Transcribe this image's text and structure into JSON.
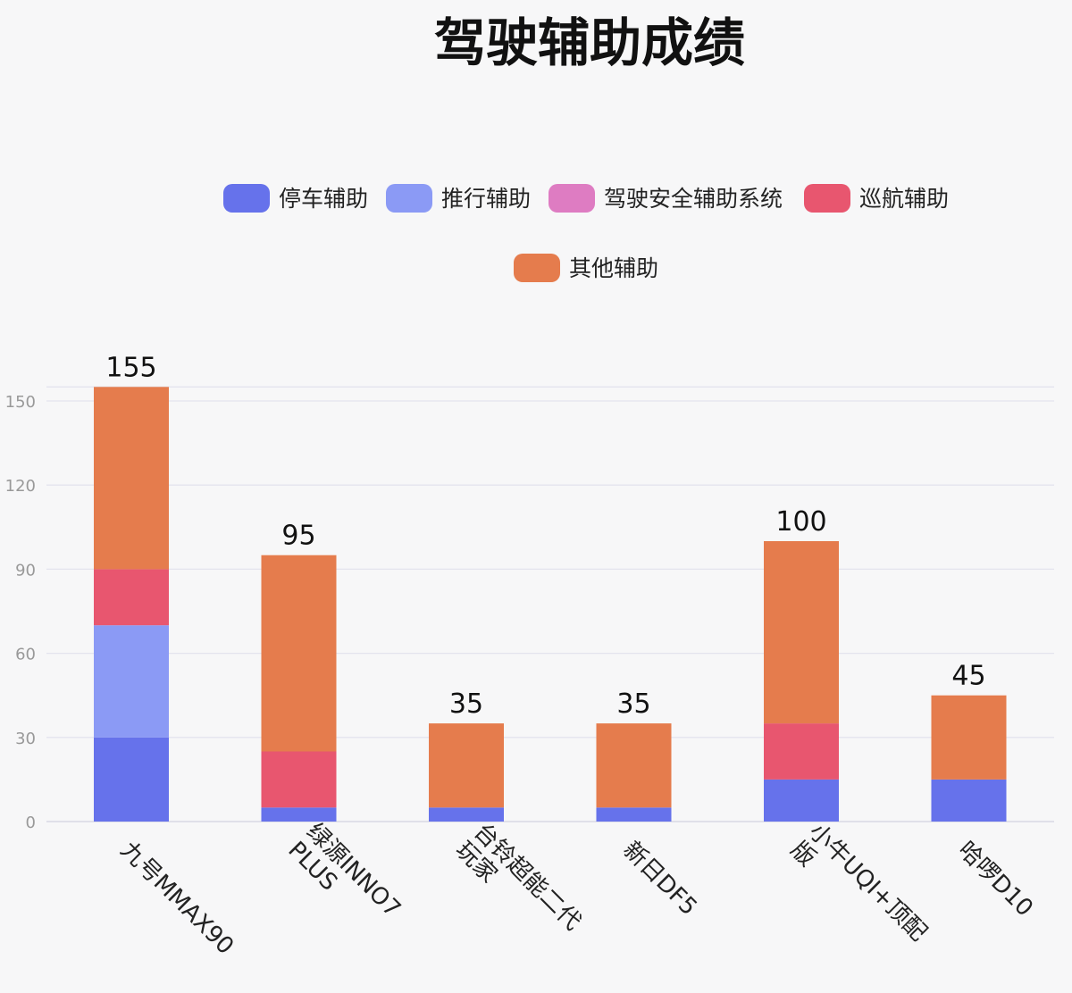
{
  "chart_data": {
    "type": "bar",
    "stacked": true,
    "title": "驾驶辅助成绩",
    "xlabel": "",
    "ylabel": "",
    "ylim": [
      0,
      150
    ],
    "yticks": [
      0,
      30,
      60,
      90,
      120,
      150
    ],
    "grid": true,
    "legend_position": "top-center",
    "categories": [
      "九号MMAX90",
      "绿源INNO7 PLUS",
      "台铃超能二代玩家",
      "新日DF5",
      "小牛UQI+顶配版",
      "哈啰D10"
    ],
    "category_lines": [
      [
        "九号MMAX90"
      ],
      [
        "绿源INNO7",
        "PLUS"
      ],
      [
        "台铃超能二代",
        "玩家"
      ],
      [
        "新日DF5"
      ],
      [
        "小牛UQI+顶配",
        "版"
      ],
      [
        "哈啰D10"
      ]
    ],
    "series": [
      {
        "name": "停车辅助",
        "color": "#6672eb",
        "values": [
          30,
          5,
          5,
          5,
          15,
          15
        ]
      },
      {
        "name": "推行辅助",
        "color": "#8b9af5",
        "values": [
          40,
          0,
          0,
          0,
          0,
          0
        ]
      },
      {
        "name": "驾驶安全辅助系统",
        "color": "#de7cc2",
        "values": [
          0,
          0,
          0,
          0,
          0,
          0
        ]
      },
      {
        "name": "巡航辅助",
        "color": "#e8566f",
        "values": [
          20,
          20,
          0,
          0,
          20,
          0
        ]
      },
      {
        "name": "其他辅助",
        "color": "#e57c4d",
        "values": [
          65,
          70,
          30,
          30,
          65,
          30
        ]
      }
    ],
    "totals": [
      "155",
      "95",
      "35",
      "35",
      "100",
      "45"
    ]
  }
}
